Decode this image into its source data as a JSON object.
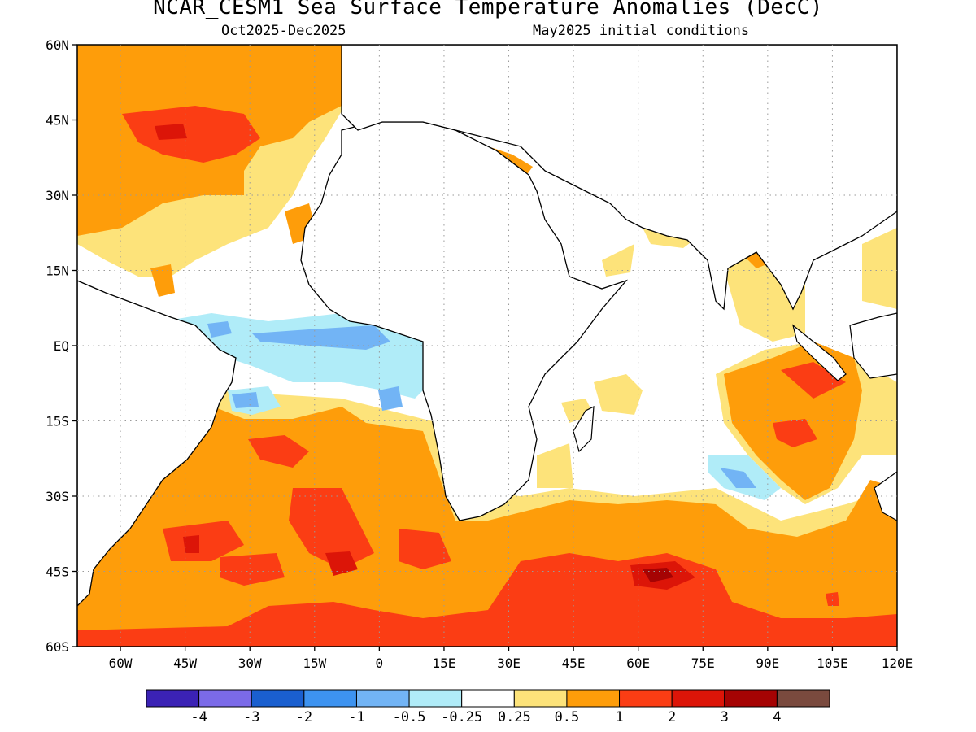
{
  "title": "NCAR_CESM1 Sea Surface Temperature Anomalies (DecC)",
  "subtitle_left": "Oct2025-Dec2025",
  "subtitle_right": "May2025 initial conditions",
  "map": {
    "lon_range": [
      -70,
      120
    ],
    "lat_range": [
      -60,
      60
    ],
    "lat_ticks": [
      {
        "value": 60,
        "label": "60N"
      },
      {
        "value": 45,
        "label": "45N"
      },
      {
        "value": 30,
        "label": "30N"
      },
      {
        "value": 15,
        "label": "15N"
      },
      {
        "value": 0,
        "label": "EQ"
      },
      {
        "value": -15,
        "label": "15S"
      },
      {
        "value": -30,
        "label": "30S"
      },
      {
        "value": -45,
        "label": "45S"
      },
      {
        "value": -60,
        "label": "60S"
      }
    ],
    "lon_ticks": [
      {
        "value": -60,
        "label": "60W"
      },
      {
        "value": -45,
        "label": "45W"
      },
      {
        "value": -30,
        "label": "30W"
      },
      {
        "value": -15,
        "label": "15W"
      },
      {
        "value": 0,
        "label": "0"
      },
      {
        "value": 15,
        "label": "15E"
      },
      {
        "value": 30,
        "label": "30E"
      },
      {
        "value": 45,
        "label": "45E"
      },
      {
        "value": 60,
        "label": "60E"
      },
      {
        "value": 75,
        "label": "75E"
      },
      {
        "value": 90,
        "label": "90E"
      },
      {
        "value": 105,
        "label": "105E"
      },
      {
        "value": 120,
        "label": "120E"
      }
    ],
    "grid": "dotted"
  },
  "colorbar": {
    "colors": [
      "#3b22b5",
      "#7b6ae8",
      "#1a5fcf",
      "#3d93f0",
      "#72b4f5",
      "#b0ecf8",
      "#ffffff",
      "#fde37a",
      "#fe9d0a",
      "#fb3d14",
      "#dc1508",
      "#a50303",
      "#7a4a3e"
    ],
    "labels": [
      "-4",
      "-3",
      "-2",
      "-1",
      "-0.5",
      "-0.25",
      "0.25",
      "0.5",
      "1",
      "2",
      "3",
      "4"
    ]
  }
}
